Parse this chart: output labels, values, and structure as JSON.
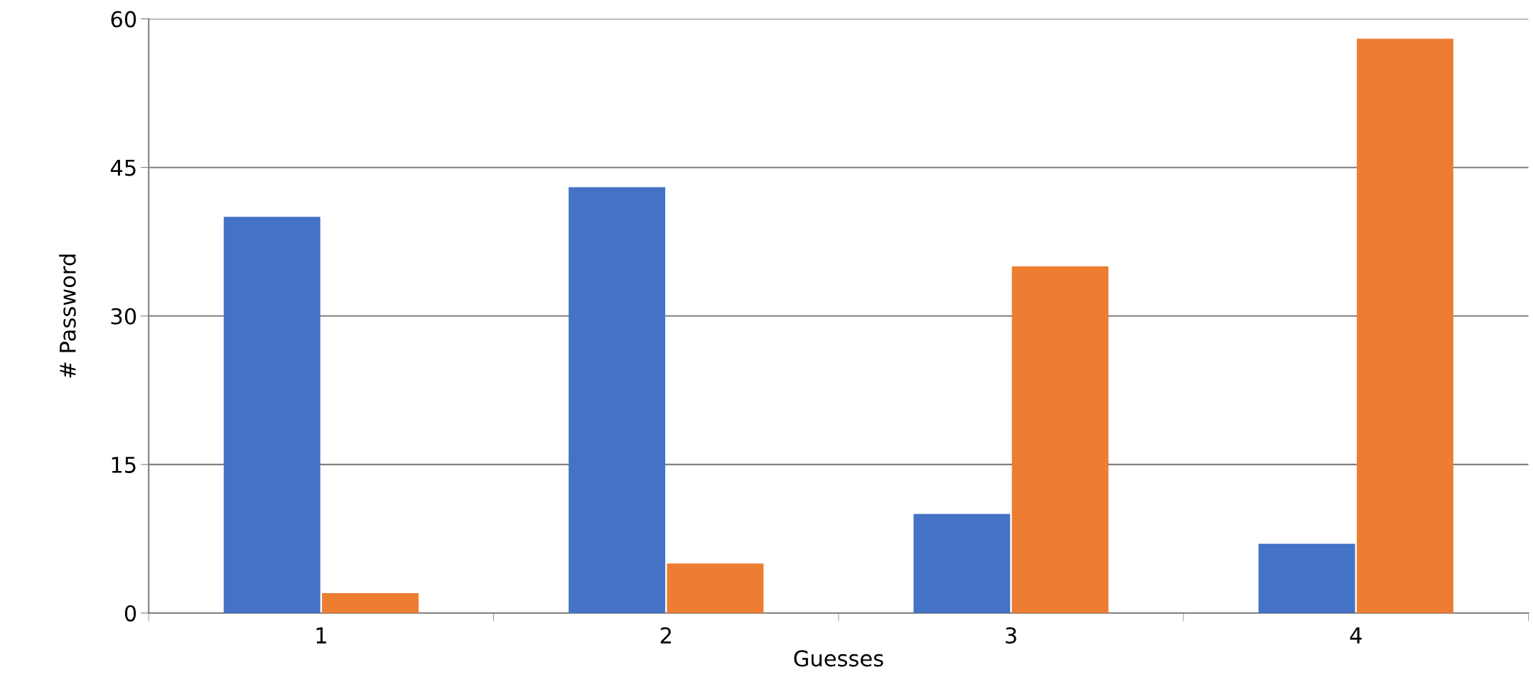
{
  "chart_data": {
    "type": "bar",
    "xlabel": "Guesses",
    "ylabel": "# Password",
    "categories": [
      "1",
      "2",
      "3",
      "4"
    ],
    "series": [
      {
        "color": "#4472c4",
        "values": [
          40,
          43,
          10,
          7
        ]
      },
      {
        "color": "#ed7d31",
        "values": [
          2,
          5,
          35,
          58
        ]
      }
    ],
    "ylim": [
      0,
      60
    ],
    "yticks": [
      0,
      15,
      30,
      45,
      60
    ],
    "grid": "y",
    "legend": false
  }
}
